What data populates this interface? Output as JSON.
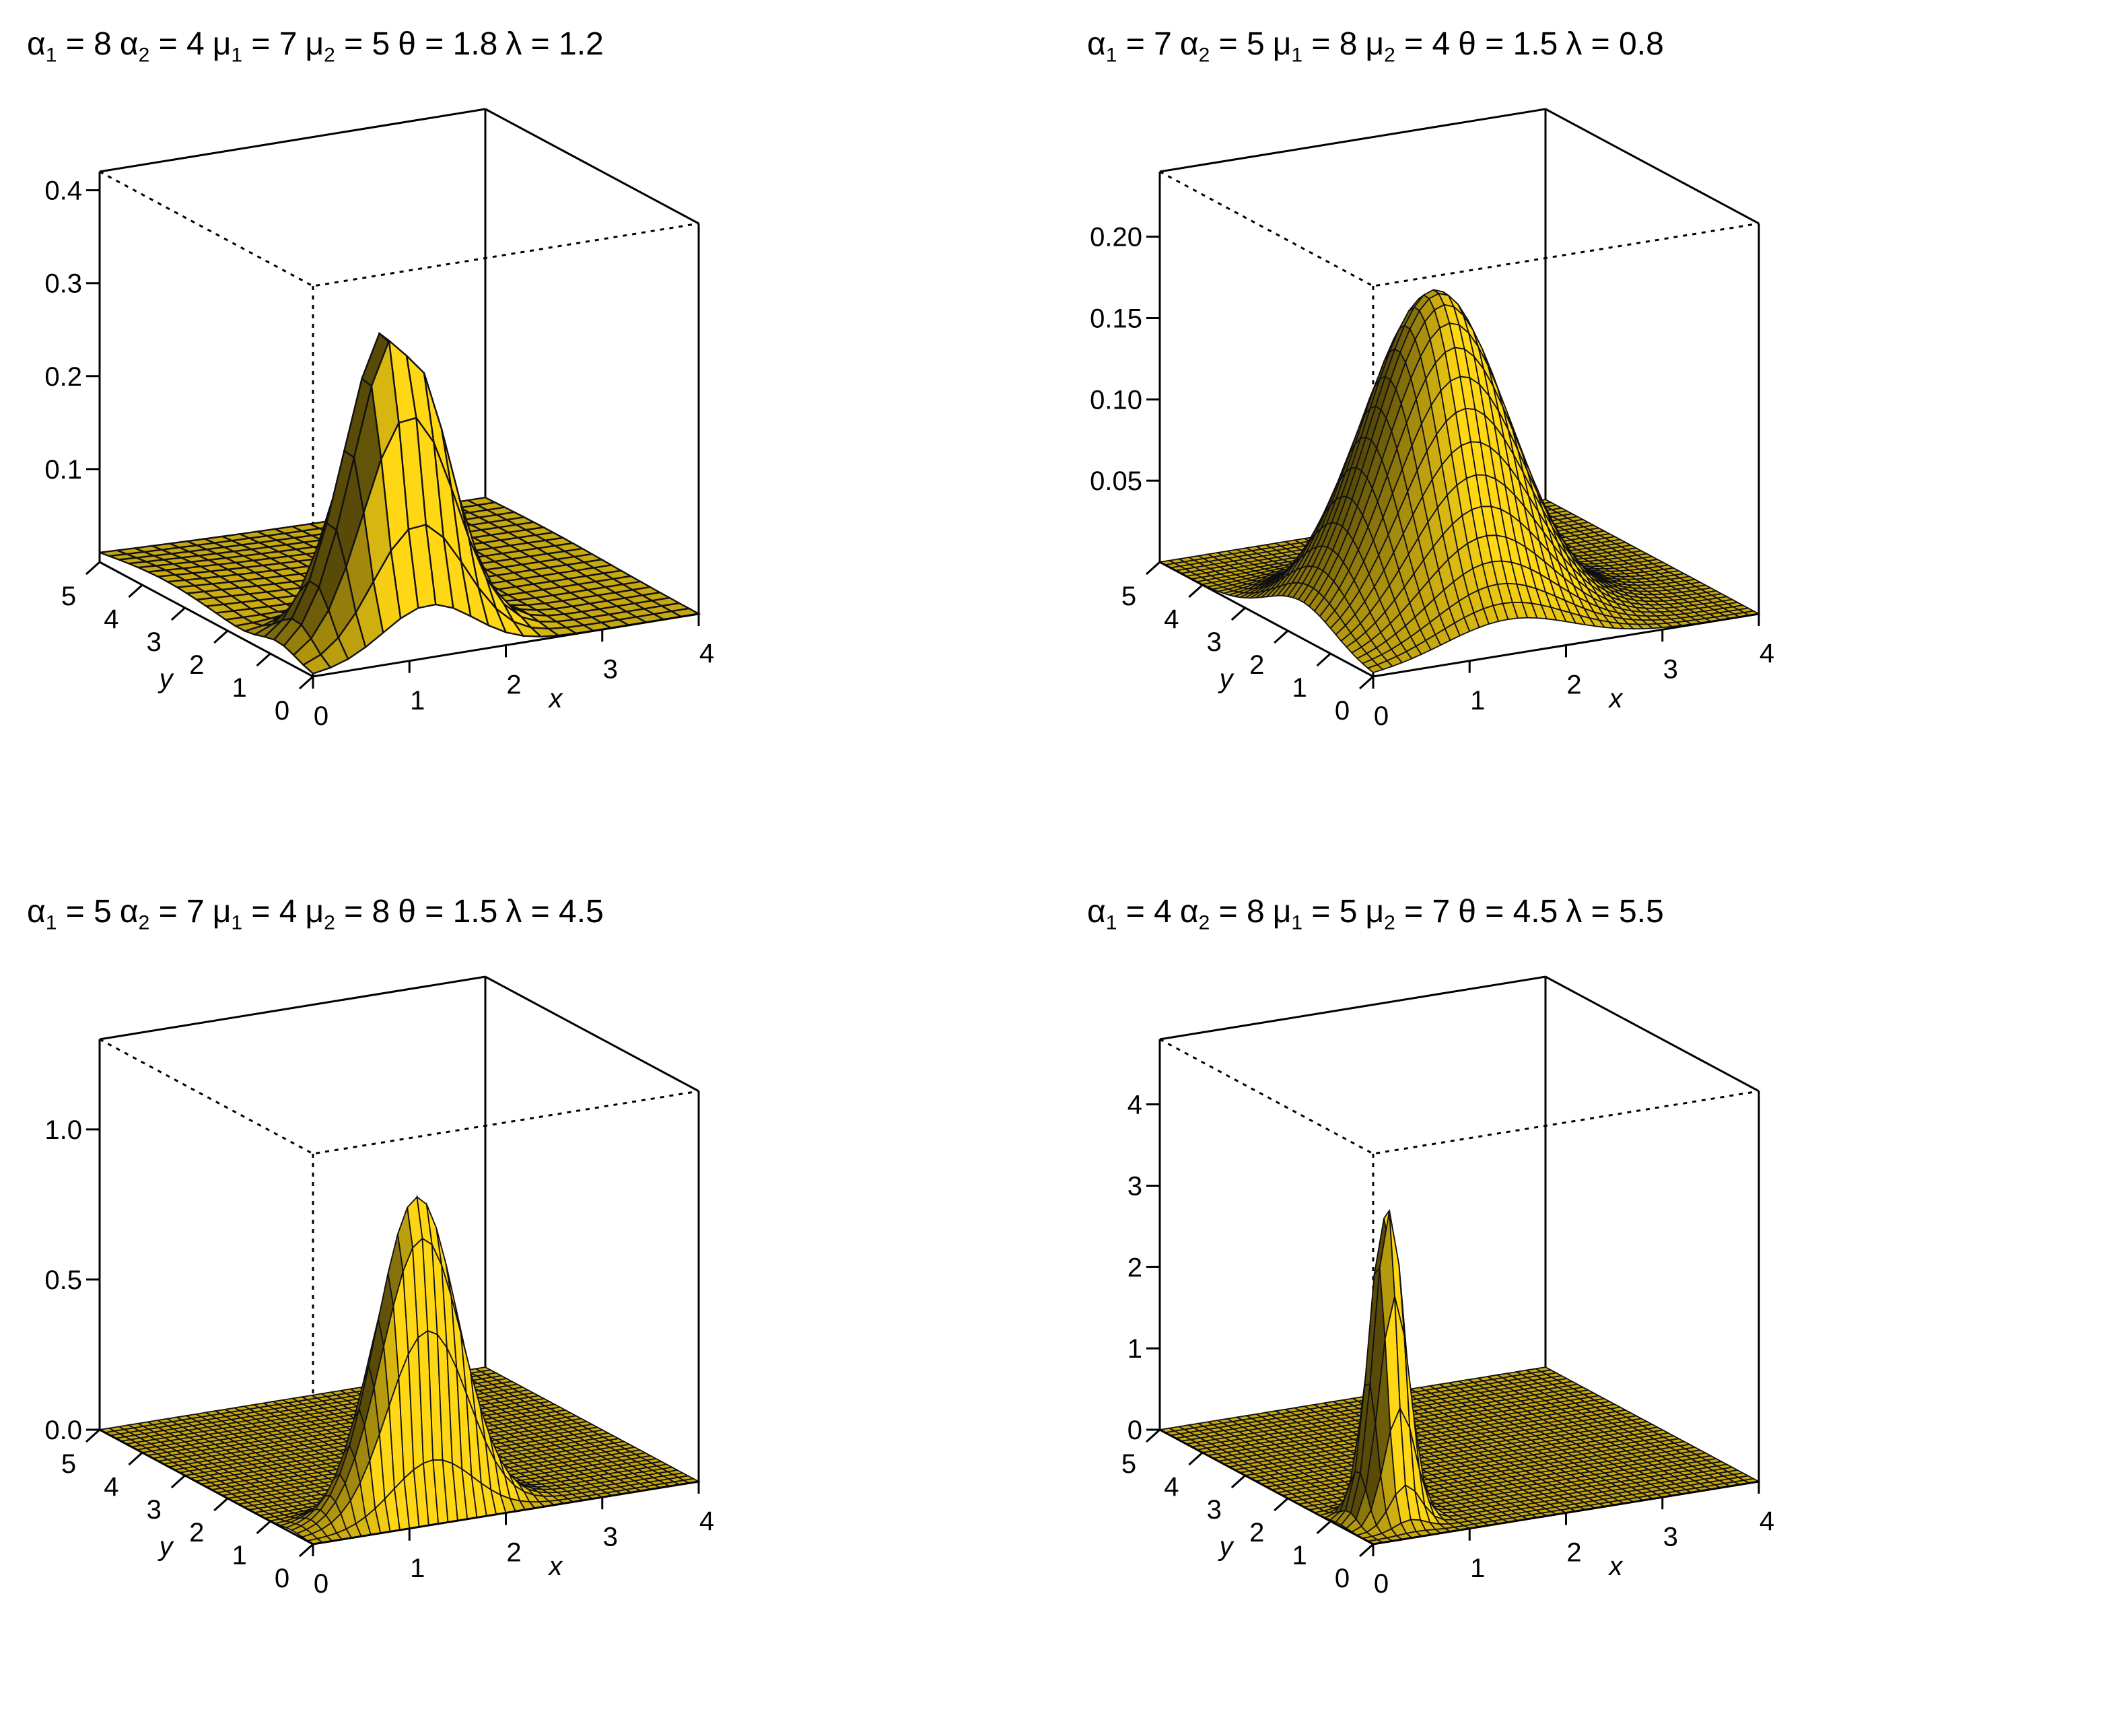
{
  "chart_data": [
    {
      "type": "surface3d",
      "title": "α₁ = 8 α₂ = 4 μ₁ = 7 μ₂ = 5 θ = 1.8 λ = 1.2",
      "params": [
        {
          "sym": "α",
          "sub": "1",
          "val": "8"
        },
        {
          "sym": "α",
          "sub": "2",
          "val": "4"
        },
        {
          "sym": "μ",
          "sub": "1",
          "val": "7"
        },
        {
          "sym": "μ",
          "sub": "2",
          "val": "5"
        },
        {
          "sym": "θ",
          "sub": "",
          "val": "1.8"
        },
        {
          "sym": "λ",
          "sub": "",
          "val": "1.2"
        }
      ],
      "xlabel": "x",
      "ylabel": "y",
      "zlabel": "",
      "xlim": [
        0,
        4
      ],
      "ylim": [
        0,
        5
      ],
      "zlim": [
        0,
        0.42
      ],
      "x_ticks": [
        "0",
        "1",
        "2",
        "3",
        "4"
      ],
      "y_ticks": [
        "0",
        "1",
        "2",
        "3",
        "4",
        "5"
      ],
      "z_ticks": [
        {
          "v": 0.1,
          "label": "0.1"
        },
        {
          "v": 0.2,
          "label": "0.2"
        },
        {
          "v": 0.3,
          "label": "0.3"
        },
        {
          "v": 0.4,
          "label": "0.4"
        }
      ],
      "peak": {
        "x": 1.2,
        "y": 0.8,
        "z": 0.35
      },
      "grid_n": 22,
      "surface_color": "#ffd700"
    },
    {
      "type": "surface3d",
      "title": "α₁ = 7 α₂ = 5 μ₁ = 8 μ₂ = 4 θ = 1.5 λ = 0.8",
      "params": [
        {
          "sym": "α",
          "sub": "1",
          "val": "7"
        },
        {
          "sym": "α",
          "sub": "2",
          "val": "5"
        },
        {
          "sym": "μ",
          "sub": "1",
          "val": "8"
        },
        {
          "sym": "μ",
          "sub": "2",
          "val": "4"
        },
        {
          "sym": "θ",
          "sub": "",
          "val": "1.5"
        },
        {
          "sym": "λ",
          "sub": "",
          "val": "0.8"
        }
      ],
      "xlabel": "x",
      "ylabel": "y",
      "zlabel": "",
      "xlim": [
        0,
        4
      ],
      "ylim": [
        0,
        5
      ],
      "zlim": [
        0,
        0.24
      ],
      "x_ticks": [
        "0",
        "1",
        "2",
        "3",
        "4"
      ],
      "y_ticks": [
        "0",
        "1",
        "2",
        "3",
        "4",
        "5"
      ],
      "z_ticks": [
        {
          "v": 0.05,
          "label": "0.05"
        },
        {
          "v": 0.1,
          "label": "0.10"
        },
        {
          "v": 0.15,
          "label": "0.15"
        },
        {
          "v": 0.2,
          "label": "0.20"
        }
      ],
      "peak": {
        "x": 1.4,
        "y": 1.7,
        "z": 0.2
      },
      "grid_n": 40,
      "surface_color": "#ffd700"
    },
    {
      "type": "surface3d",
      "title": "α₁ = 5 α₂ = 7 μ₁ = 4 μ₂ = 8 θ = 1.5 λ = 4.5",
      "params": [
        {
          "sym": "α",
          "sub": "1",
          "val": "5"
        },
        {
          "sym": "α",
          "sub": "2",
          "val": "7"
        },
        {
          "sym": "μ",
          "sub": "1",
          "val": "4"
        },
        {
          "sym": "μ",
          "sub": "2",
          "val": "8"
        },
        {
          "sym": "θ",
          "sub": "",
          "val": "1.5"
        },
        {
          "sym": "λ",
          "sub": "",
          "val": "4.5"
        }
      ],
      "xlabel": "x",
      "ylabel": "y",
      "zlabel": "",
      "xlim": [
        0,
        4
      ],
      "ylim": [
        0,
        5
      ],
      "zlim": [
        0,
        1.3
      ],
      "x_ticks": [
        "0",
        "1",
        "2",
        "3",
        "4"
      ],
      "y_ticks": [
        "0",
        "1",
        "2",
        "3",
        "4",
        "5"
      ],
      "z_ticks": [
        {
          "v": 0.0,
          "label": "0.0"
        },
        {
          "v": 0.5,
          "label": "0.5"
        },
        {
          "v": 1.0,
          "label": "1.0"
        }
      ],
      "peak": {
        "x": 1.3,
        "y": 0.5,
        "z": 1.05
      },
      "grid_n": 40,
      "surface_color": "#ffd700"
    },
    {
      "type": "surface3d",
      "title": "α₁ = 4 α₂ = 8 μ₁ = 5 μ₂ = 7 θ = 4.5 λ = 5.5",
      "params": [
        {
          "sym": "α",
          "sub": "1",
          "val": "4"
        },
        {
          "sym": "α",
          "sub": "2",
          "val": "8"
        },
        {
          "sym": "μ",
          "sub": "1",
          "val": "5"
        },
        {
          "sym": "μ",
          "sub": "2",
          "val": "7"
        },
        {
          "sym": "θ",
          "sub": "",
          "val": "4.5"
        },
        {
          "sym": "λ",
          "sub": "",
          "val": "5.5"
        }
      ],
      "xlabel": "x",
      "ylabel": "y",
      "zlabel": "",
      "xlim": [
        0,
        4
      ],
      "ylim": [
        0,
        5
      ],
      "zlim": [
        0,
        4.8
      ],
      "x_ticks": [
        "0",
        "1",
        "2",
        "3",
        "4"
      ],
      "y_ticks": [
        "0",
        "1",
        "2",
        "3",
        "4",
        "5"
      ],
      "z_ticks": [
        {
          "v": 0,
          "label": "0"
        },
        {
          "v": 1,
          "label": "1"
        },
        {
          "v": 2,
          "label": "2"
        },
        {
          "v": 3,
          "label": "3"
        },
        {
          "v": 4,
          "label": "4"
        }
      ],
      "peak": {
        "x": 0.5,
        "y": 0.8,
        "z": 3.9
      },
      "grid_n": 40,
      "surface_color": "#ffd700"
    }
  ]
}
